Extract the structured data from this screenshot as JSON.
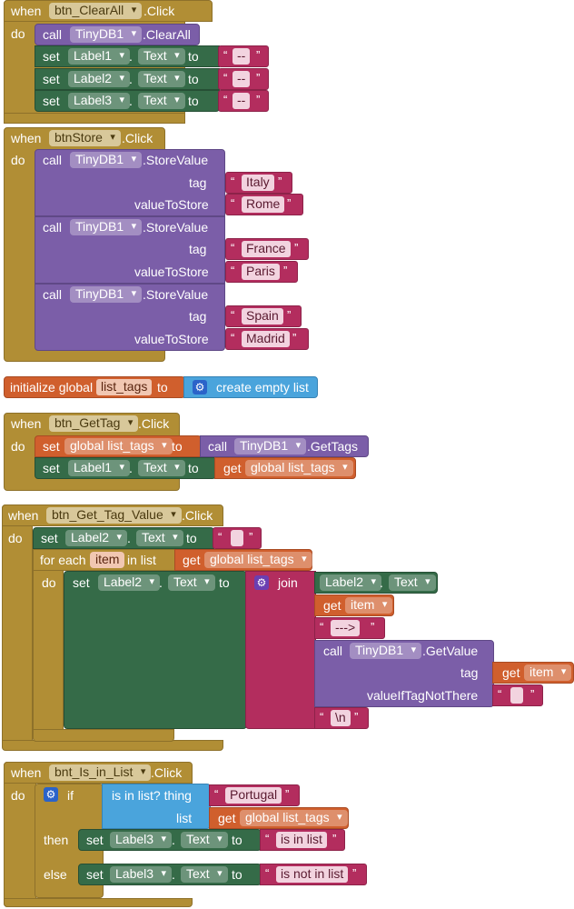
{
  "kw": {
    "when": "when",
    "do": "do",
    "call": "call",
    "set": "set",
    "to": "to",
    "tag": "tag",
    "value_to_store": "valueToStore",
    "get": "get",
    "initialize_global": "initialize global",
    "create_empty_list": "create empty list",
    "for_each": "for each",
    "in_list": "in list",
    "join": "join",
    "value_if_tag_not_there": "valueIfTagNotThere",
    "if": "if",
    "is_in_list_thing": "is in list? thing",
    "list": "list",
    "then": "then",
    "else": "else",
    "dot": "."
  },
  "events": {
    "clear_all": "btn_ClearAll",
    "click": ".Click",
    "store": "btnStore",
    "get_tag": "btn_GetTag",
    "get_tag_value": "btn_Get_Tag_Value",
    "is_in_list": "bnt_Is_in_List"
  },
  "comp": {
    "tinydb": "TinyDB1",
    "label1": "Label1",
    "label2": "Label2",
    "label3": "Label3",
    "text": "Text",
    "clear_all_method": ".ClearAll",
    "store_value_method": ".StoreValue",
    "get_tags_method": ".GetTags",
    "get_value_method": ".GetValue"
  },
  "vars": {
    "list_tags": "list_tags",
    "global_list_tags": "global list_tags",
    "item": "item"
  },
  "strings": {
    "dashes": "--",
    "italy": "Italy",
    "rome": "Rome",
    "france": "France",
    "paris": "Paris",
    "spain": "Spain",
    "madrid": "Madrid",
    "arrow": "--->",
    "newline": "\\n",
    "portugal": "Portugal",
    "is_in_list": "is in list",
    "is_not_in_list": "is not in list",
    "empty": "",
    "lq": "“",
    "rq": "”"
  },
  "colors": {
    "event": "#b18e35",
    "component_method": "#7b5ea8",
    "setter": "#356b48",
    "text": "#b32d5e",
    "variable": "#d05f2d",
    "list": "#4aa4dc"
  },
  "icons": {
    "mutator": "gear-icon"
  }
}
